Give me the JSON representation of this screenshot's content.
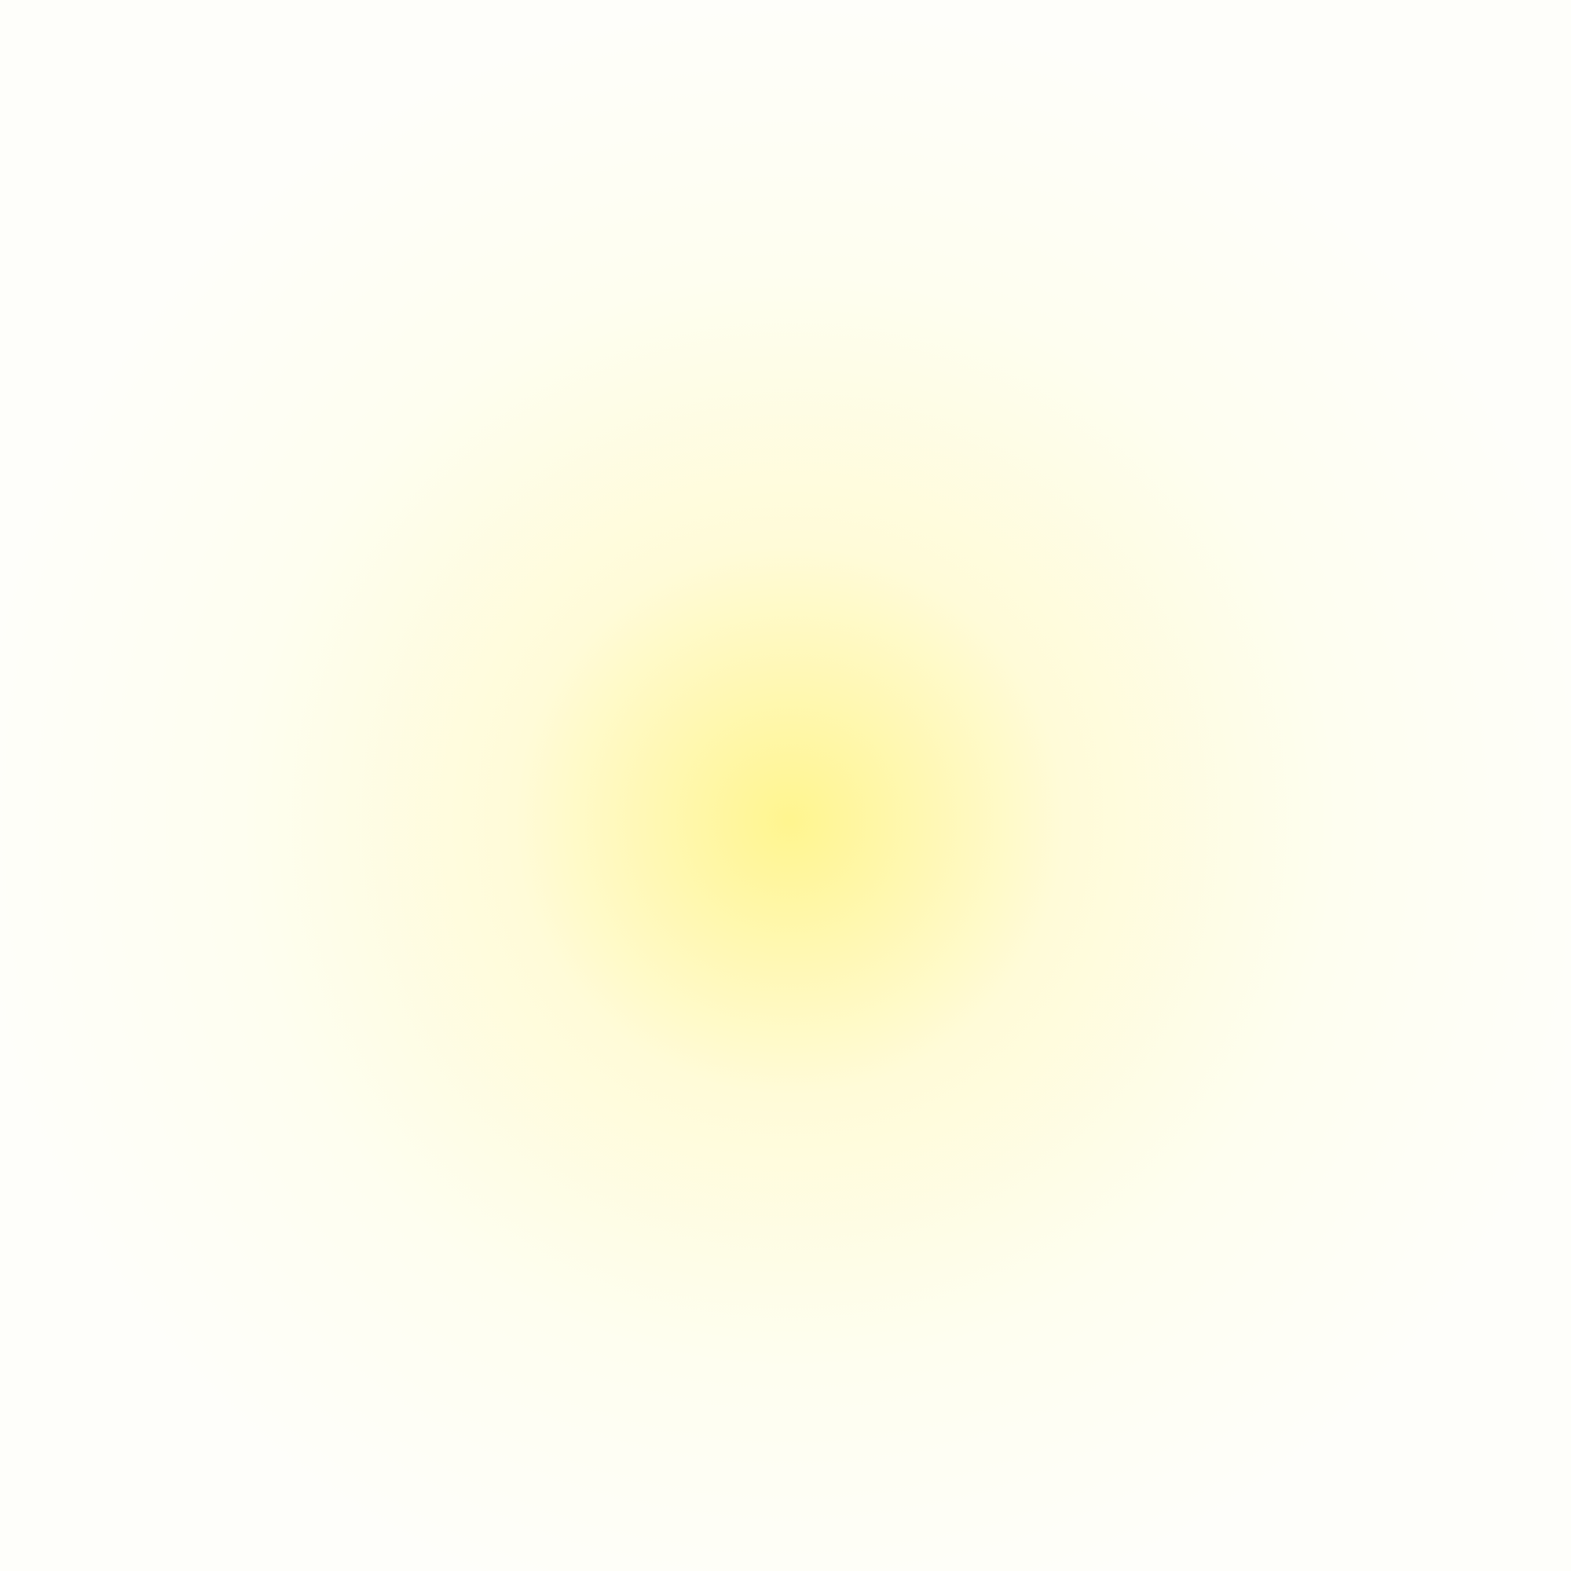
{
  "background": {
    "base_color": "#fefefa",
    "glow_center_color": "#fff58f",
    "glow_mid_color": "#fffbd8",
    "glow_outer_color": "#fefef0"
  }
}
